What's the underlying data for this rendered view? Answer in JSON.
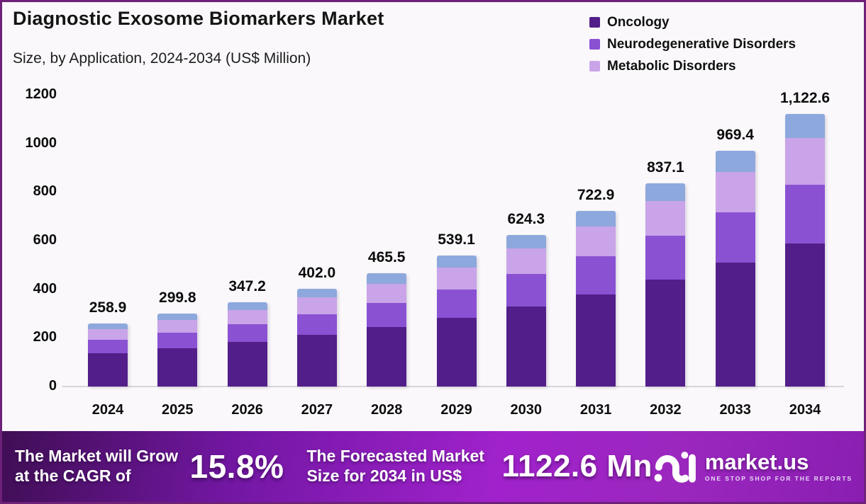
{
  "header": {
    "title": "Diagnostic Exosome Biomarkers Market",
    "subtitle": "Size, by Application, 2024-2034 (US$ Million)"
  },
  "legend": [
    {
      "label": "Oncology",
      "color": "#521E89"
    },
    {
      "label": "Neurodegenerative Disorders",
      "color": "#8A51D3"
    },
    {
      "label": "Metabolic Disorders",
      "color": "#C9A4E8"
    }
  ],
  "chart_data": {
    "type": "bar",
    "stacked": true,
    "title": "Diagnostic Exosome Biomarkers Market Size, by Application, 2024-2034 (US$ Million)",
    "categories": [
      "2024",
      "2025",
      "2026",
      "2027",
      "2028",
      "2029",
      "2030",
      "2031",
      "2032",
      "2033",
      "2034"
    ],
    "totals": [
      258.9,
      299.8,
      347.2,
      402.0,
      465.5,
      539.1,
      624.3,
      722.9,
      837.1,
      969.4,
      1122.6
    ],
    "total_labels": [
      "258.9",
      "299.8",
      "347.2",
      "402.0",
      "465.5",
      "539.1",
      "624.3",
      "722.9",
      "837.1",
      "969.4",
      "1,122.6"
    ],
    "series": [
      {
        "name": "Oncology",
        "color": "#521E89",
        "values": [
          135.9,
          157.4,
          182.3,
          211.1,
          244.4,
          283.0,
          327.8,
          379.5,
          439.5,
          508.9,
          589.4
        ]
      },
      {
        "name": "Neurodegenerative Disorders",
        "color": "#8A51D3",
        "values": [
          55.7,
          64.5,
          74.6,
          86.4,
          100.1,
          115.9,
          134.2,
          155.4,
          180.0,
          208.4,
          241.4
        ]
      },
      {
        "name": "Metabolic Disorders",
        "color": "#C9A4E8",
        "values": [
          44.0,
          51.0,
          59.0,
          68.3,
          79.1,
          91.6,
          106.1,
          122.9,
          142.3,
          164.8,
          190.8
        ]
      },
      {
        "name": "",
        "color": "#8DA8DC",
        "values": [
          23.3,
          26.9,
          31.3,
          36.2,
          41.9,
          48.6,
          56.2,
          65.1,
          75.3,
          87.3,
          101.0
        ]
      }
    ],
    "xlabel": "",
    "ylabel": "",
    "ylim": [
      0,
      1200
    ],
    "yticks": [
      0,
      200,
      400,
      600,
      800,
      1000,
      1200
    ],
    "grid": false,
    "legend_position": "top-right"
  },
  "footer": {
    "cagr_text": "The Market will Grow at the CAGR of",
    "cagr_value": "15.8%",
    "forecast_text": "The Forecasted Market Size for 2034 in US$",
    "forecast_value": "1122.6 Mn",
    "brand": {
      "name": "market.us",
      "tagline": "ONE STOP SHOP FOR THE REPORTS"
    }
  },
  "colors": {
    "frame_border": "#6E2179",
    "background": "#FAF8FB",
    "baseline": "#D8D4DA",
    "banner_gradient": [
      "#400E55",
      "#7417A5",
      "#A122CC",
      "#8A1EB2"
    ],
    "text": "#0d0d0d"
  }
}
